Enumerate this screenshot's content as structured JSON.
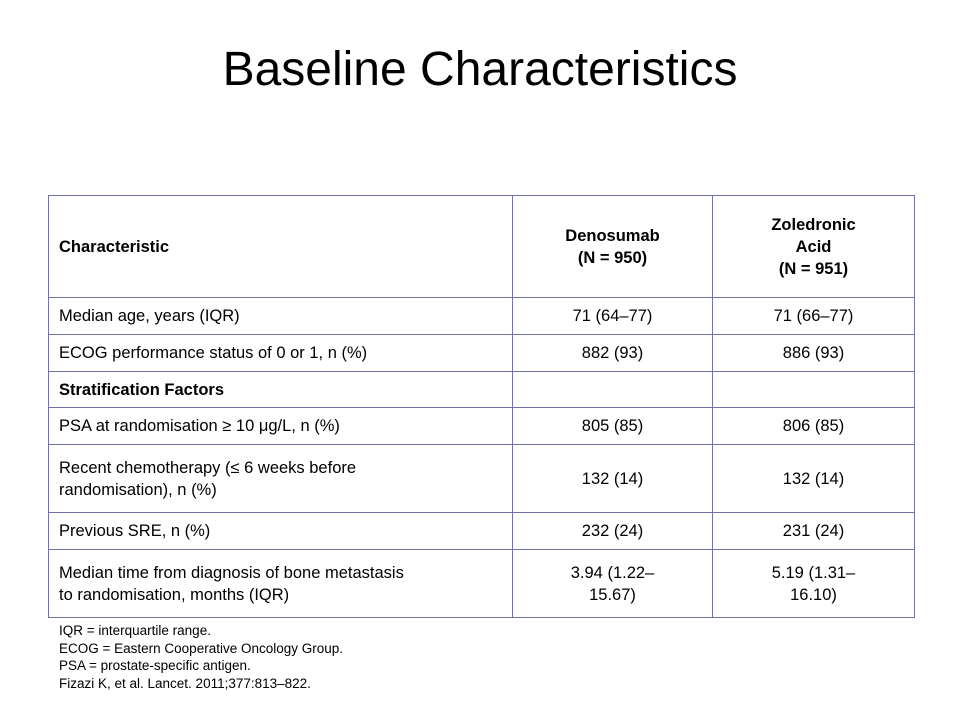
{
  "slide": {
    "title": "Baseline Characteristics"
  },
  "table": {
    "headers": {
      "characteristic": "Characteristic",
      "denosumab": [
        "Denosumab",
        "(N = 950)"
      ],
      "zoledronic": [
        "Zoledronic",
        "Acid",
        "(N = 951)"
      ]
    },
    "rows": [
      {
        "label": [
          "Median age, years (IQR)"
        ],
        "denosumab": [
          "71 (64–77)"
        ],
        "zoledronic": [
          "71 (66–77)"
        ]
      },
      {
        "label": [
          "ECOG performance status of 0 or 1, n (%)"
        ],
        "denosumab": [
          "882 (93)"
        ],
        "zoledronic": [
          "886 (93)"
        ]
      },
      {
        "label": [
          "Stratification Factors"
        ]
      },
      {
        "label": [
          "PSA at randomisation ≥ 10 μg/L, n (%)"
        ],
        "denosumab": [
          "805 (85)"
        ],
        "zoledronic": [
          "806 (85)"
        ]
      },
      {
        "label": [
          "Recent chemotherapy (≤ 6 weeks before",
          "randomisation), n (%)"
        ],
        "denosumab": [
          "132 (14)"
        ],
        "zoledronic": [
          "132 (14)"
        ]
      },
      {
        "label": [
          "Previous SRE, n (%)"
        ],
        "denosumab": [
          "232 (24)"
        ],
        "zoledronic": [
          "231 (24)"
        ]
      },
      {
        "label": [
          "Median time from diagnosis of bone metastasis",
          "to randomisation, months (IQR)"
        ],
        "denosumab": [
          "3.94 (1.22–",
          "15.67)"
        ],
        "zoledronic": [
          "5.19 (1.31–",
          "16.10)"
        ]
      }
    ]
  },
  "footnotes": [
    "IQR = interquartile range.",
    "ECOG = Eastern Cooperative Oncology Group.",
    "PSA = prostate-specific antigen.",
    "Fizazi K, et al. Lancet. 2011;377:813–822."
  ]
}
